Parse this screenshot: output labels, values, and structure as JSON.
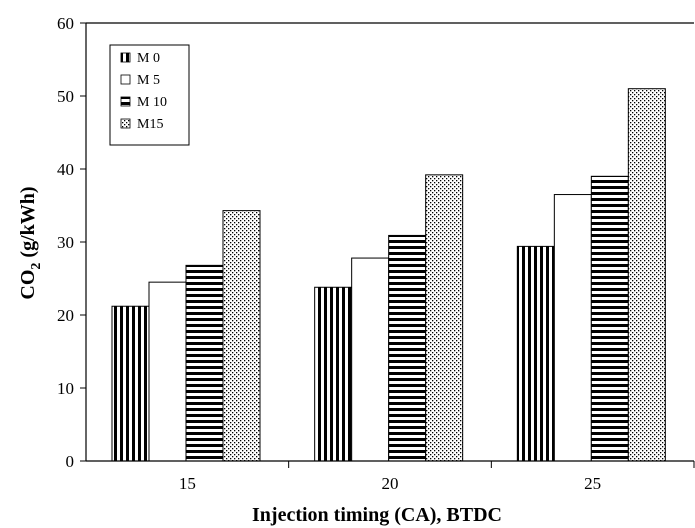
{
  "chart_data": {
    "type": "bar",
    "title": "",
    "xlabel": "Injection timing (CA), BTDC",
    "ylabel_main": "CO",
    "ylabel_sub": "2",
    "ylabel_units": " (g/kWh)",
    "categories": [
      "15",
      "20",
      "25"
    ],
    "ylim": [
      0,
      60
    ],
    "yticks": [
      "0",
      "10",
      "20",
      "30",
      "40",
      "50",
      "60"
    ],
    "grid": false,
    "legend_position": "top-left",
    "series": [
      {
        "name": "M 0",
        "values": [
          21.2,
          23.8,
          29.4
        ],
        "pattern": "vertical-lines"
      },
      {
        "name": "M 5",
        "values": [
          24.5,
          27.8,
          36.5
        ],
        "pattern": "plain"
      },
      {
        "name": "M 10",
        "values": [
          26.8,
          30.9,
          39.0
        ],
        "pattern": "horizontal-lines"
      },
      {
        "name": "M15",
        "values": [
          34.3,
          39.2,
          51.0
        ],
        "pattern": "dots"
      }
    ]
  }
}
